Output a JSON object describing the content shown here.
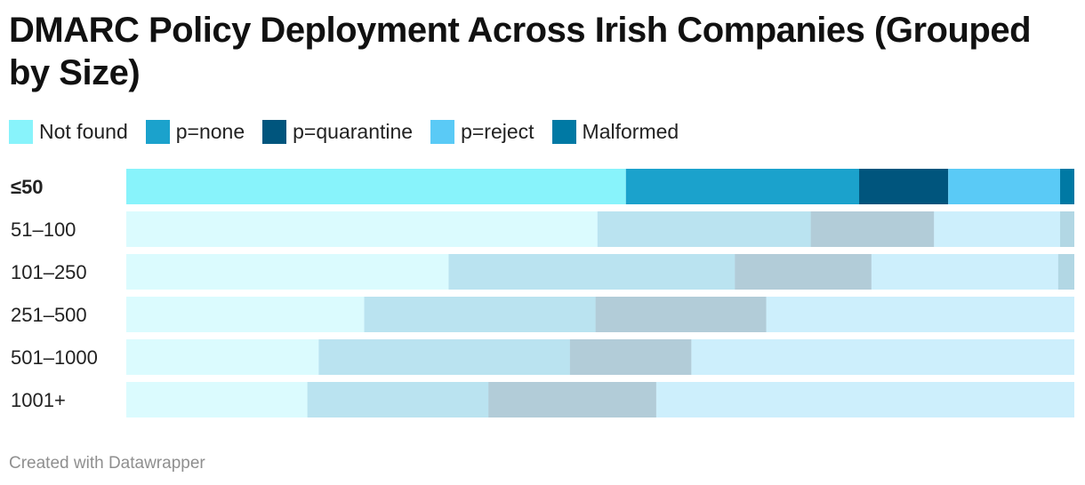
{
  "title": "DMARC Policy Deployment Across Irish Companies (Grouped by Size)",
  "footer": "Created with Datawrapper",
  "legend": [
    {
      "label": "Not found",
      "color": "#88f3fb"
    },
    {
      "label": "p=none",
      "color": "#1ba2cc"
    },
    {
      "label": "p=quarantine",
      "color": "#00557d"
    },
    {
      "label": "p=reject",
      "color": "#5acaf6"
    },
    {
      "label": "Malformed",
      "color": "#0079a4"
    }
  ],
  "chart_data": {
    "type": "bar",
    "orientation": "horizontal",
    "stacked": true,
    "unit": "percent",
    "highlighted_category": "≤50",
    "categories": [
      "≤50",
      "51–100",
      "101–250",
      "251–500",
      "501–1000",
      "1001+"
    ],
    "series": [
      {
        "name": "Not found",
        "color": "#88f3fb",
        "values": [
          52.7,
          49.7,
          34.0,
          25.1,
          20.3,
          19.1
        ]
      },
      {
        "name": "p=none",
        "color": "#1ba2cc",
        "values": [
          24.6,
          22.5,
          30.2,
          24.4,
          26.5,
          19.1
        ]
      },
      {
        "name": "p=quarantine",
        "color": "#00557d",
        "values": [
          9.4,
          13.0,
          14.4,
          18.0,
          12.8,
          17.7
        ]
      },
      {
        "name": "p=reject",
        "color": "#5acaf6",
        "values": [
          11.8,
          13.3,
          19.7,
          32.5,
          40.4,
          44.1
        ]
      },
      {
        "name": "Malformed",
        "color": "#0079a4",
        "values": [
          1.5,
          1.5,
          1.7,
          0.0,
          0.0,
          0.0
        ]
      }
    ]
  }
}
